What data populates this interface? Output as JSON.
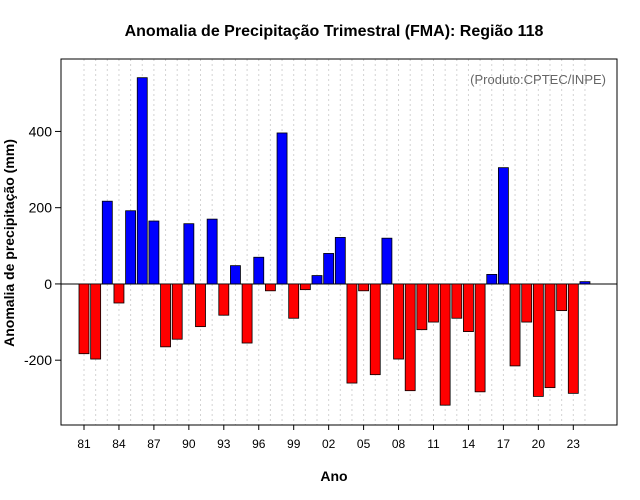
{
  "chart_data": {
    "type": "bar",
    "title": "Anomalia de Precipitação Trimestral (FMA): Região 118",
    "xlabel": "Ano",
    "ylabel": "Anomalia de precipitação (mm)",
    "annotation": "(Produto:CPTEC/INPE)",
    "ylim": [
      -370,
      590
    ],
    "yticks": [
      -200,
      0,
      200,
      400
    ],
    "ytick_labels": [
      "-200",
      "0",
      "200",
      "400"
    ],
    "xtick_years": [
      1981,
      1984,
      1987,
      1990,
      1993,
      1996,
      1999,
      2002,
      2005,
      2008,
      2011,
      2014,
      2017,
      2020,
      2023
    ],
    "xtick_labels": [
      "81",
      "84",
      "87",
      "90",
      "93",
      "96",
      "99",
      "02",
      "05",
      "08",
      "11",
      "14",
      "17",
      "20",
      "23"
    ],
    "grid": true,
    "positive_color": "#0000ff",
    "negative_color": "#ff0000",
    "years": [
      1981,
      1982,
      1983,
      1984,
      1985,
      1986,
      1987,
      1988,
      1989,
      1990,
      1991,
      1992,
      1993,
      1994,
      1995,
      1996,
      1997,
      1998,
      1999,
      2000,
      2001,
      2002,
      2003,
      2004,
      2005,
      2006,
      2007,
      2008,
      2009,
      2010,
      2011,
      2012,
      2013,
      2014,
      2015,
      2016,
      2017,
      2018,
      2019,
      2020,
      2021,
      2022,
      2023,
      2024
    ],
    "values": [
      -183,
      -197,
      217,
      -50,
      192,
      541,
      165,
      -165,
      -145,
      158,
      -112,
      170,
      -82,
      48,
      -155,
      70,
      -18,
      396,
      -90,
      -15,
      22,
      80,
      122,
      -260,
      -18,
      -238,
      120,
      -197,
      -280,
      -120,
      -100,
      -318,
      -90,
      -125,
      -283,
      25,
      305,
      -215,
      -100,
      -295,
      -272,
      -70,
      -287,
      6
    ]
  }
}
